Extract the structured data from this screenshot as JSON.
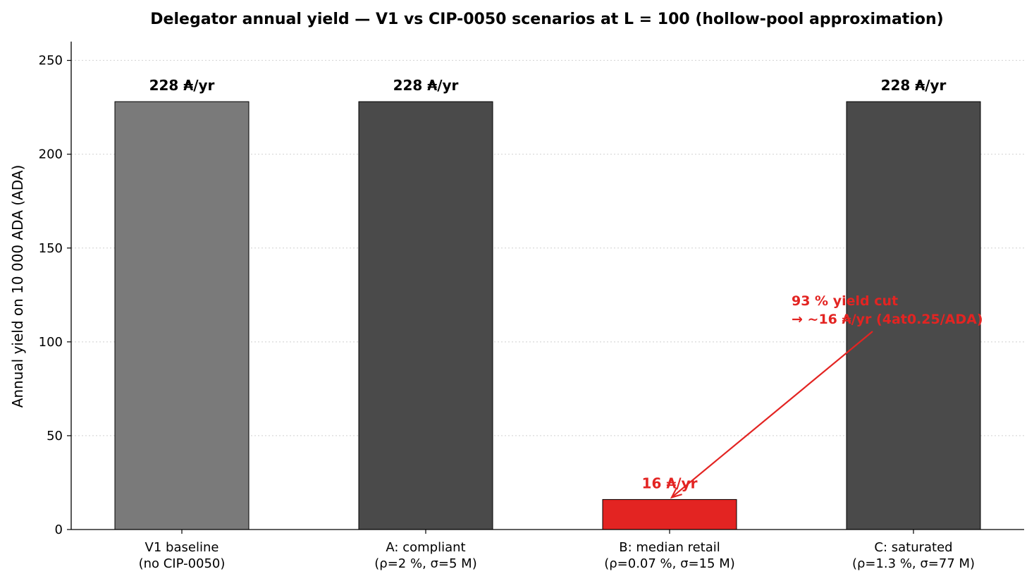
{
  "chart_data": {
    "type": "bar",
    "title": "Delegator annual yield — V1 vs CIP-0050 scenarios at L = 100  (hollow-pool approximation)",
    "ylabel": "Annual yield on 10 000 ADA  (ADA)",
    "xlabel": "",
    "ylim": [
      0,
      260
    ],
    "yticks": [
      0,
      50,
      100,
      150,
      200,
      250
    ],
    "grid": "y-dotted",
    "categories": [
      [
        "V1 baseline",
        "(no CIP-0050)"
      ],
      [
        "A: compliant",
        "(ρ=2 %, σ=5 M)"
      ],
      [
        "B: median retail",
        "(ρ=0.07 %, σ=15 M)"
      ],
      [
        "C: saturated",
        "(ρ=1.3 %, σ=77 M)"
      ]
    ],
    "values": [
      228,
      228,
      16,
      228
    ],
    "data_labels": [
      "228 ₳/yr",
      "228 ₳/yr",
      "16 ₳/yr",
      "228 ₳/yr"
    ],
    "colors": [
      "#7a7a7a",
      "#4a4a4a",
      "#e32422",
      "#4a4a4a"
    ],
    "label_colors": [
      "#000000",
      "#000000",
      "#e32422",
      "#000000"
    ],
    "annotation": {
      "lines": [
        "93 % yield cut",
        "→ ~16 ₳/yr  (4at0.25/ADA)"
      ],
      "color": "#e32422",
      "target_category": 2,
      "target_value": 16
    }
  }
}
